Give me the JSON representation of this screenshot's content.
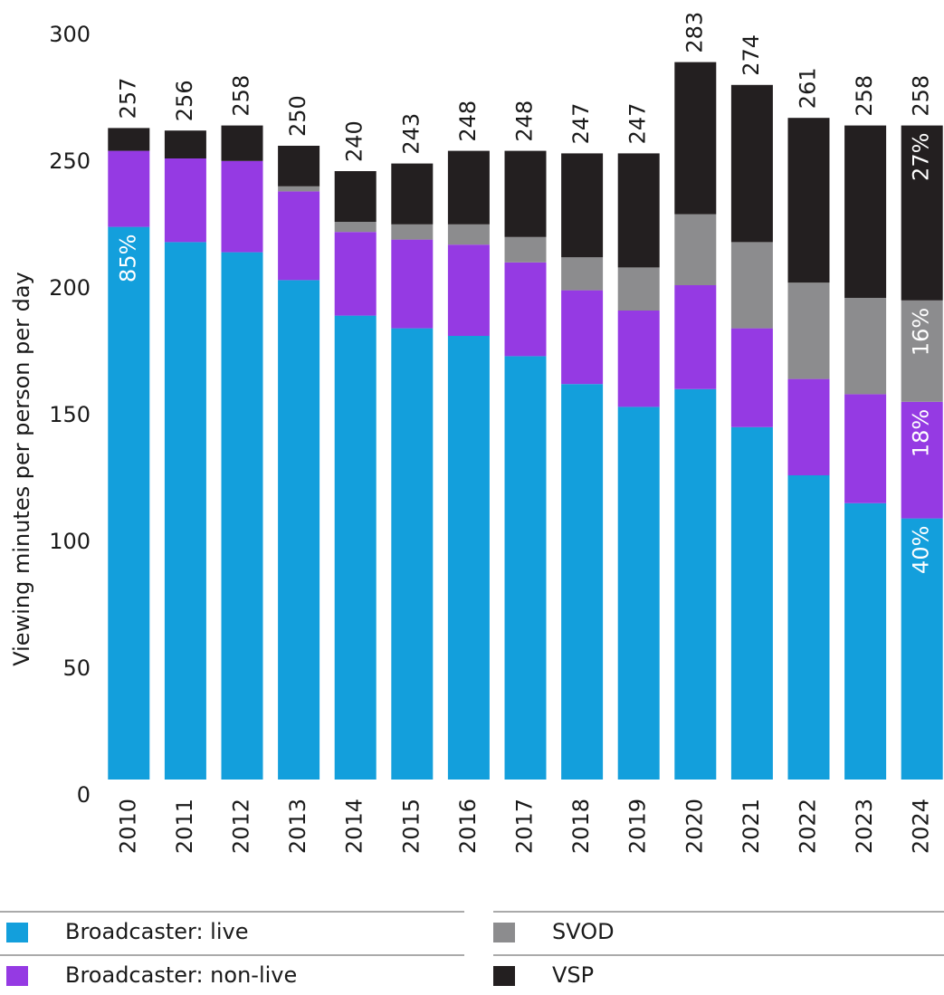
{
  "chart_data": {
    "type": "stacked_bar",
    "y_label": "Viewing minutes per person per day",
    "categories": [
      "2010",
      "2011",
      "2012",
      "2013",
      "2014",
      "2015",
      "2016",
      "2017",
      "2018",
      "2019",
      "2020",
      "2021",
      "2022",
      "2023",
      "2024"
    ],
    "series": [
      {
        "name": "Broadcaster: live",
        "color": "#139fdc",
        "values": [
          218,
          212,
          208,
          197,
          183,
          178,
          175,
          167,
          156,
          147,
          154,
          139,
          120,
          109,
          103
        ],
        "value_labels": [
          "85%",
          null,
          null,
          null,
          null,
          null,
          null,
          null,
          null,
          null,
          null,
          null,
          null,
          null,
          "40%"
        ]
      },
      {
        "name": "Broadcaster: non-live",
        "color": "#953ae3",
        "values": [
          30,
          33,
          36,
          35,
          33,
          35,
          36,
          37,
          37,
          38,
          41,
          39,
          38,
          43,
          46
        ],
        "value_labels": [
          null,
          null,
          null,
          null,
          null,
          null,
          null,
          null,
          null,
          null,
          null,
          null,
          null,
          null,
          "18%"
        ]
      },
      {
        "name": "SVOD",
        "color": "#8c8c8e",
        "values": [
          0,
          0,
          0,
          2,
          4,
          6,
          8,
          10,
          13,
          17,
          28,
          34,
          38,
          38,
          40
        ],
        "value_labels": [
          null,
          null,
          null,
          null,
          null,
          null,
          null,
          null,
          null,
          null,
          null,
          null,
          null,
          null,
          "16%"
        ]
      },
      {
        "name": "VSP",
        "color": "#231f20",
        "values": [
          9,
          11,
          14,
          16,
          20,
          24,
          29,
          34,
          41,
          45,
          60,
          62,
          65,
          68,
          69
        ],
        "value_labels": [
          null,
          null,
          null,
          null,
          null,
          null,
          null,
          null,
          null,
          null,
          null,
          null,
          null,
          null,
          "27%"
        ]
      }
    ],
    "totals": [
      257,
      256,
      258,
      250,
      240,
      243,
      248,
      248,
      247,
      247,
      283,
      274,
      261,
      258,
      258
    ],
    "ylim": [
      0,
      300
    ],
    "yticks": [
      0,
      50,
      100,
      150,
      200,
      250,
      300
    ]
  }
}
